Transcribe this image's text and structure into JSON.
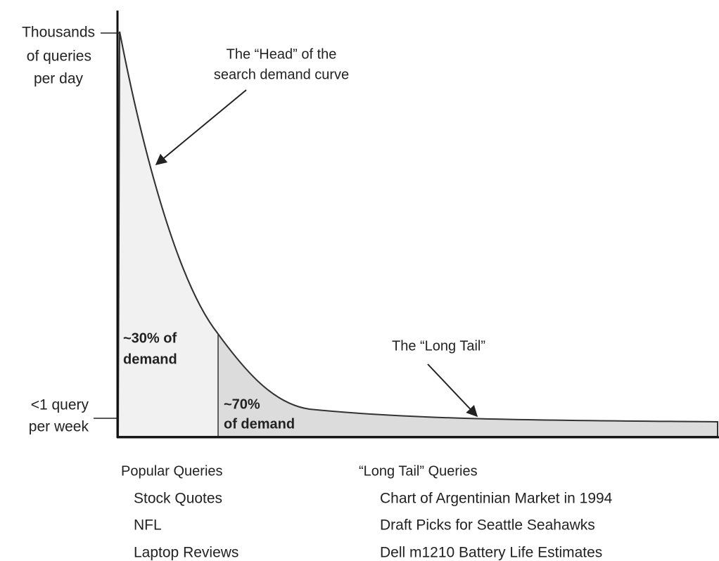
{
  "y_axis": {
    "top_label": [
      "Thousands",
      "of queries",
      "per day"
    ],
    "bottom_label": [
      "<1 query",
      "per week"
    ]
  },
  "annotations": {
    "head": [
      "The “Head” of the",
      "search demand curve"
    ],
    "head_share": [
      "~30% of",
      "demand"
    ],
    "tail_share": [
      "~70%",
      "of demand"
    ],
    "tail": "The “Long Tail”"
  },
  "lists": [
    {
      "title": "Popular Queries",
      "items": [
        "Stock Quotes",
        "NFL",
        "Laptop Reviews"
      ]
    },
    {
      "title": "“Long Tail” Queries",
      "items": [
        "Chart of Argentinian Market in 1994",
        "Draft Picks for Seattle Seahawks",
        "Dell m1210 Battery Life Estimates"
      ]
    }
  ]
}
